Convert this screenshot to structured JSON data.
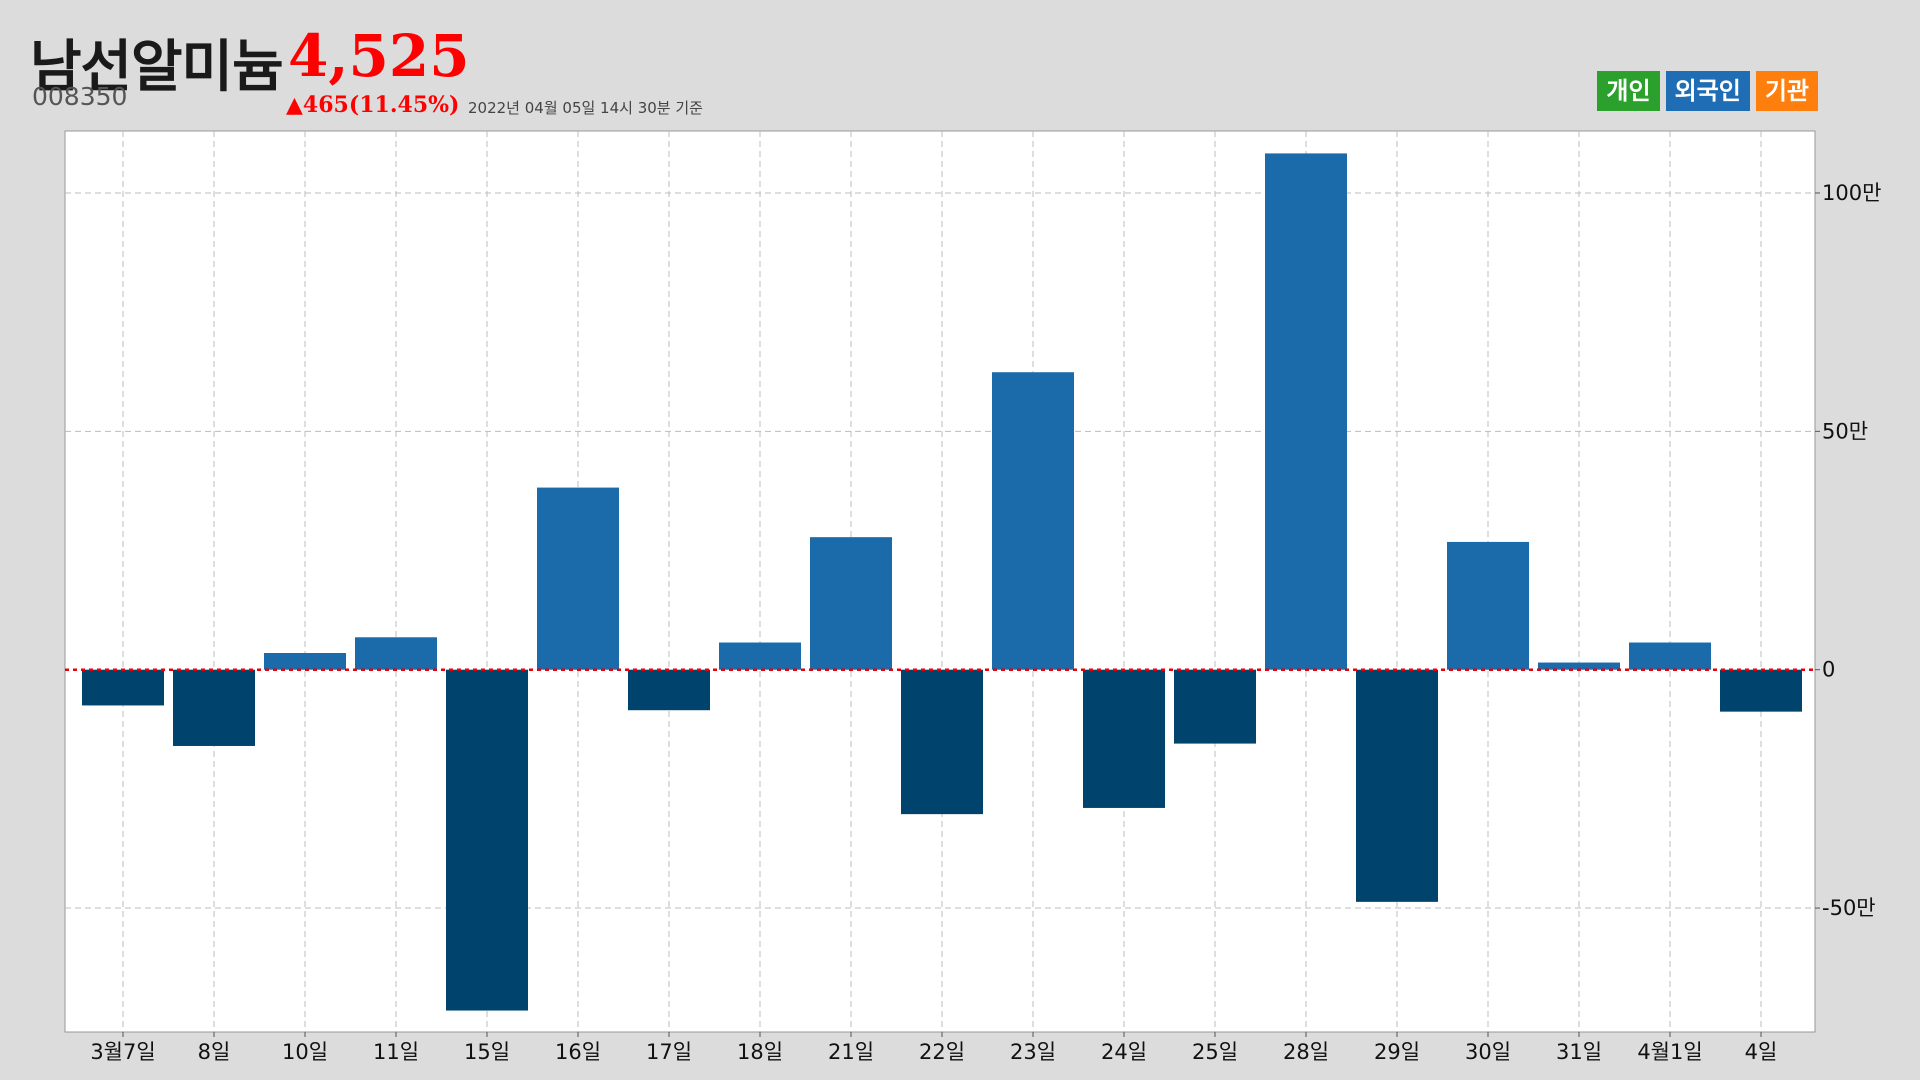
{
  "header": {
    "name": "남선알미늄",
    "price": "4,525",
    "code": "008350",
    "change": "▲465(11.45%)",
    "timestamp": "2022년 04월 05일 14시 30분 기준"
  },
  "legend": [
    {
      "label": "개인",
      "color": "#2ca02c"
    },
    {
      "label": "외국인",
      "color": "#1f6eb5"
    },
    {
      "label": "기관",
      "color": "#ff7f0e"
    }
  ],
  "colors": {
    "positive": "#1b6aa9",
    "negative": "#00436c",
    "zero_line": "#e8000b",
    "grid": "#bdbdbd"
  },
  "chart_data": {
    "type": "bar",
    "series": [
      {
        "values": [
          -75000,
          -160000,
          35000,
          68000,
          -715000,
          382000,
          -85000,
          57000,
          278000,
          -303000,
          624000,
          -290000,
          -155000,
          1083000,
          -487000,
          268000,
          15000,
          57000,
          -88000
        ]
      }
    ],
    "categories": [
      "3월7일",
      "8일",
      "10일",
      "11일",
      "15일",
      "16일",
      "17일",
      "18일",
      "21일",
      "22일",
      "23일",
      "24일",
      "25일",
      "28일",
      "29일",
      "30일",
      "31일",
      "4월1일",
      "4일"
    ],
    "y_ticks": [
      1000000,
      500000,
      0,
      -500000
    ],
    "y_tick_labels": [
      "100만",
      "50만",
      "0",
      "-50만"
    ],
    "ylim": [
      -760000,
      1130000
    ],
    "y_axis_side": "right",
    "grid": true
  }
}
